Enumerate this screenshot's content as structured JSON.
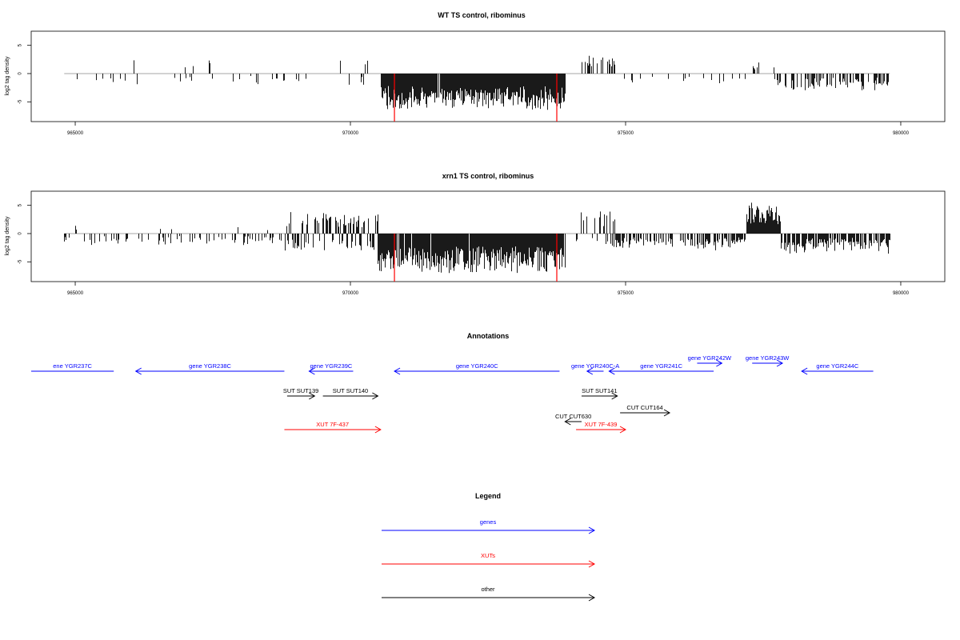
{
  "colors": {
    "genes": "#0000ff",
    "xuts": "#ff0000",
    "other": "#000000",
    "bars": "#000000",
    "markers": "#ff0000",
    "baseline": "#888888"
  },
  "chart_data": [
    {
      "type": "bar",
      "title": "WT TS control, ribominus",
      "xlabel": "",
      "ylabel": "log2 tag density",
      "xlim": [
        964200,
        980800
      ],
      "ylim": [
        -8.5,
        7.5
      ],
      "x_ticks": [
        965000,
        970000,
        975000,
        980000
      ],
      "x_tick_labels": [
        "965000",
        "970000",
        "975000",
        "980000"
      ],
      "y_ticks": [
        -5,
        0,
        5
      ],
      "y_tick_labels": [
        "-5",
        "0",
        "5"
      ],
      "markers_x": [
        970800,
        973750
      ],
      "marker_ymin": -8.5,
      "segments": [
        {
          "from": 964800,
          "to": 969700,
          "density": 0.09,
          "mode": "neg",
          "amp": 2.0,
          "pos_density": 0.01,
          "pos_amp": 2.5
        },
        {
          "from": 969700,
          "to": 970550,
          "density": 0.12,
          "mode": "mixed",
          "amp": 2.0,
          "pos_amp": 3.0
        },
        {
          "from": 970550,
          "to": 973900,
          "density": 0.98,
          "mode": "neg",
          "amp": 5.5
        },
        {
          "from": 973900,
          "to": 974200,
          "density": 0.05,
          "mode": "neg",
          "amp": 1.5
        },
        {
          "from": 974200,
          "to": 974800,
          "density": 0.35,
          "mode": "pos",
          "amp": 3.2
        },
        {
          "from": 974800,
          "to": 977300,
          "density": 0.12,
          "mode": "neg",
          "amp": 1.8
        },
        {
          "from": 977300,
          "to": 977700,
          "density": 0.3,
          "mode": "pos",
          "amp": 2.0
        },
        {
          "from": 977700,
          "to": 979800,
          "density": 0.5,
          "mode": "neg",
          "amp": 3.2
        }
      ]
    },
    {
      "type": "bar",
      "title": "xrn1 TS control, ribominus",
      "xlabel": "",
      "ylabel": "log2 tag density",
      "xlim": [
        964200,
        980800
      ],
      "ylim": [
        -8.5,
        7.5
      ],
      "x_ticks": [
        965000,
        970000,
        975000,
        980000
      ],
      "x_tick_labels": [
        "965000",
        "970000",
        "975000",
        "980000"
      ],
      "y_ticks": [
        -5,
        0,
        5
      ],
      "y_tick_labels": [
        "-5",
        "0",
        "5"
      ],
      "markers_x": [
        970800,
        973750
      ],
      "marker_ymin": -8.5,
      "segments": [
        {
          "from": 964800,
          "to": 968800,
          "density": 0.25,
          "mode": "neg",
          "amp": 2.2,
          "pos_density": 0.02,
          "pos_amp": 1.5
        },
        {
          "from": 968800,
          "to": 969500,
          "density": 0.55,
          "mode": "mixed",
          "amp": 3.0,
          "pos_amp": 4.0
        },
        {
          "from": 969500,
          "to": 970500,
          "density": 0.7,
          "mode": "mixed",
          "amp": 3.0,
          "pos_amp": 3.5
        },
        {
          "from": 970500,
          "to": 973900,
          "density": 0.98,
          "mode": "neg",
          "amp": 6.0
        },
        {
          "from": 974100,
          "to": 974800,
          "density": 0.55,
          "mode": "mixed",
          "amp": 2.5,
          "pos_amp": 4.0
        },
        {
          "from": 974800,
          "to": 977200,
          "density": 0.5,
          "mode": "neg",
          "amp": 3.0
        },
        {
          "from": 977200,
          "to": 977800,
          "density": 0.95,
          "mode": "pos",
          "amp": 5.5
        },
        {
          "from": 977800,
          "to": 979800,
          "density": 0.75,
          "mode": "neg",
          "amp": 3.8
        }
      ]
    }
  ],
  "annotations": {
    "title": "Annotations",
    "xlim": [
      964200,
      980800
    ],
    "features": [
      {
        "label": "ene YGR237C",
        "x1": 964200,
        "x2": 965700,
        "row": 0,
        "class": "genes",
        "dir": "none"
      },
      {
        "label": "gene YGR238C",
        "x1": 966100,
        "x2": 968800,
        "row": 0,
        "class": "genes",
        "dir": "left"
      },
      {
        "label": "gene YGR239C",
        "x1": 969250,
        "x2": 970050,
        "row": 0,
        "class": "genes",
        "dir": "left"
      },
      {
        "label": "gene YGR240C",
        "x1": 970800,
        "x2": 973800,
        "row": 0,
        "class": "genes",
        "dir": "left"
      },
      {
        "label": "gene YGR240C-A",
        "x1": 974300,
        "x2": 974600,
        "row": 0,
        "class": "genes",
        "dir": "left"
      },
      {
        "label": "gene YGR241C",
        "x1": 974700,
        "x2": 976600,
        "row": 0,
        "class": "genes",
        "dir": "left"
      },
      {
        "label": "gene YGR242W",
        "x1": 976300,
        "x2": 976750,
        "row": -1,
        "class": "genes",
        "dir": "right"
      },
      {
        "label": "gene YGR243W",
        "x1": 977300,
        "x2": 977850,
        "row": -1,
        "class": "genes",
        "dir": "right"
      },
      {
        "label": "gene YGR244C",
        "x1": 978200,
        "x2": 979500,
        "row": 0,
        "class": "genes",
        "dir": "left"
      },
      {
        "label": "SUT SUT139",
        "x1": 968850,
        "x2": 969350,
        "row": 1,
        "class": "other",
        "dir": "right"
      },
      {
        "label": "SUT SUT140",
        "x1": 969500,
        "x2": 970500,
        "row": 1,
        "class": "other",
        "dir": "right"
      },
      {
        "label": "SUT SUT141",
        "x1": 974200,
        "x2": 974850,
        "row": 1,
        "class": "other",
        "dir": "right"
      },
      {
        "label": "CUT CUT164",
        "x1": 974900,
        "x2": 975800,
        "row": 2,
        "class": "other",
        "dir": "right"
      },
      {
        "label": "CUT CUT630",
        "x1": 973900,
        "x2": 974200,
        "row": 3,
        "class": "other",
        "dir": "left"
      },
      {
        "label": "XUT 7F-437",
        "x1": 968800,
        "x2": 970550,
        "row": 4,
        "class": "xuts",
        "dir": "right"
      },
      {
        "label": "XUT 7F-439",
        "x1": 974100,
        "x2": 975000,
        "row": 4,
        "class": "xuts",
        "dir": "right"
      }
    ]
  },
  "legend": {
    "title": "Legend",
    "items": [
      {
        "label": "genes",
        "class": "genes"
      },
      {
        "label": "XUTs",
        "class": "xuts"
      },
      {
        "label": "other",
        "class": "other"
      }
    ]
  }
}
